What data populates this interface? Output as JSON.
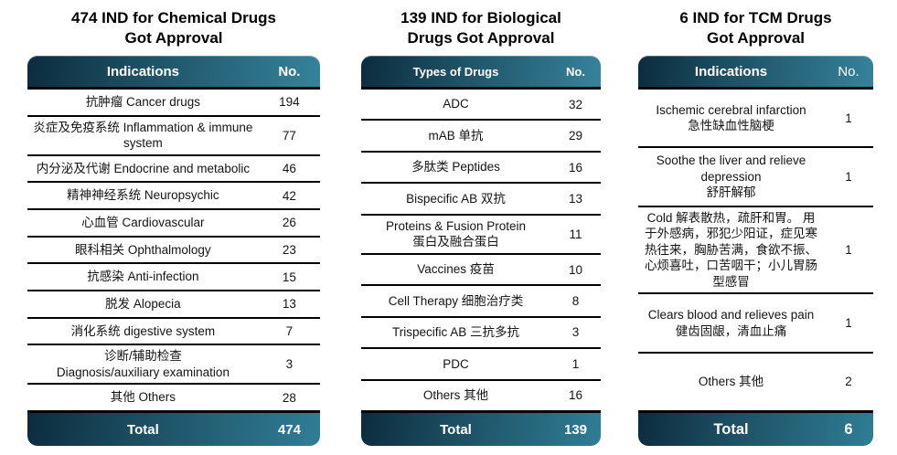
{
  "colors": {
    "gradient_dark": "#0c2c3e",
    "gradient_teal": "#35839b",
    "gradient_teal_footer": "#2f7e96",
    "line_black": "#000000",
    "text_dark": "#141414"
  },
  "chart_data": [
    {
      "type": "table",
      "title": "474 IND for Chemical Drugs\nGot Approval",
      "columns": [
        "Indications",
        "No."
      ],
      "rows": [
        {
          "label": "抗肿瘤 Cancer drugs",
          "no": "194"
        },
        {
          "label": "炎症及免疫系统 Inflammation & immune system",
          "no": "77"
        },
        {
          "label": "内分泌及代谢 Endocrine and metabolic",
          "no": "46"
        },
        {
          "label": "精神神经系统 Neuropsychic",
          "no": "42"
        },
        {
          "label": "心血管 Cardiovascular",
          "no": "26"
        },
        {
          "label": "眼科相关 Ophthalmology",
          "no": "23"
        },
        {
          "label": "抗感染 Anti-infection",
          "no": "15"
        },
        {
          "label": "脱发 Alopecia",
          "no": "13"
        },
        {
          "label": "消化系统 digestive system",
          "no": "7"
        },
        {
          "label": "诊断/辅助检查\nDiagnosis/auxiliary examination",
          "no": "3"
        },
        {
          "label": "其他 Others",
          "no": "28"
        }
      ],
      "total": {
        "label": "Total",
        "no": "474"
      }
    },
    {
      "type": "table",
      "title": "139 IND for Biological\nDrugs Got Approval",
      "columns": [
        "Types of Drugs",
        "No."
      ],
      "rows": [
        {
          "label": "ADC",
          "no": "32"
        },
        {
          "label": "mAB 单抗",
          "no": "29"
        },
        {
          "label": "多肽类 Peptides",
          "no": "16"
        },
        {
          "label": "Bispecific AB 双抗",
          "no": "13"
        },
        {
          "label": "Proteins & Fusion Protein\n蛋白及融合蛋白",
          "no": "11"
        },
        {
          "label": "Vaccines 疫苗",
          "no": "10"
        },
        {
          "label": "Cell Therapy 细胞治疗类",
          "no": "8"
        },
        {
          "label": "Trispecific AB 三抗多抗",
          "no": "3"
        },
        {
          "label": "PDC",
          "no": "1"
        },
        {
          "label": "Others 其他",
          "no": "16"
        }
      ],
      "total": {
        "label": "Total",
        "no": "139"
      }
    },
    {
      "type": "table",
      "title": "6 IND for TCM Drugs\nGot Approval",
      "columns": [
        "Indications",
        "No."
      ],
      "rows": [
        {
          "label": "Ischemic cerebral infarction\n急性缺血性脑梗",
          "no": "1"
        },
        {
          "label": "Soothe the liver and relieve depression\n舒肝解郁",
          "no": "1"
        },
        {
          "label": "Cold 解表散热，疏肝和胃。 用于外感病，邪犯少阳证，症见寒热往来，胸胁苦满，食欲不振、心烦喜吐，口苦咽干；小儿胃肠型感冒",
          "no": "1"
        },
        {
          "label": "Clears blood and relieves pain\n健齿固龈，清血止痛",
          "no": "1"
        },
        {
          "label": "Others 其他",
          "no": "2"
        }
      ],
      "total": {
        "label": "Total",
        "no": "6"
      }
    }
  ]
}
